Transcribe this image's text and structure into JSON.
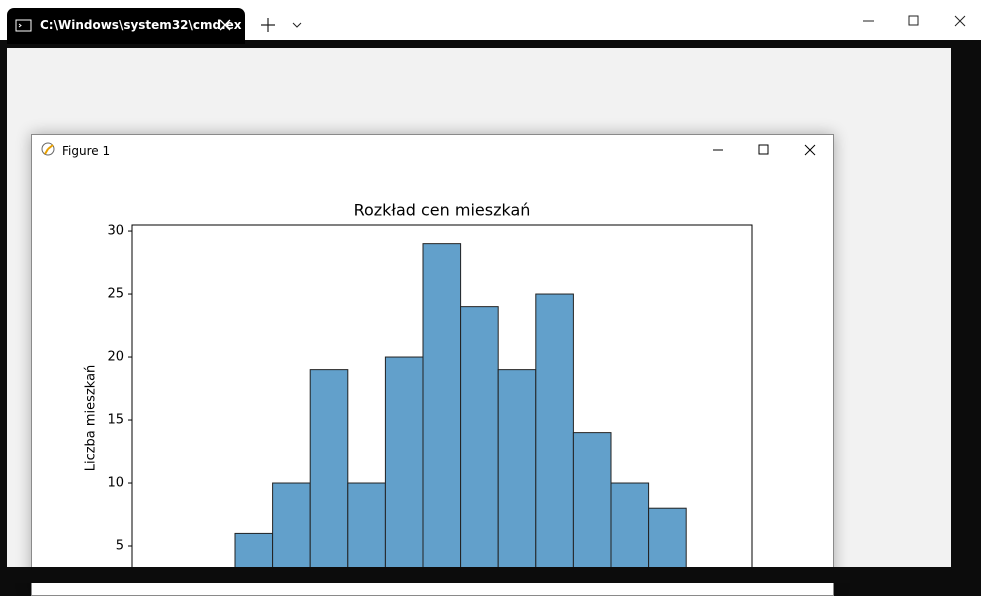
{
  "window": {
    "tab_title": "C:\\Windows\\system32\\cmd.ex"
  },
  "figure_window": {
    "title": "Figure 1"
  },
  "chart_data": {
    "type": "bar",
    "title": "Rozkład cen mieszkań",
    "y_label": "Liczba mieszkań",
    "values": [
      6,
      10,
      19,
      10,
      20,
      29,
      24,
      19,
      25,
      14,
      10,
      8
    ],
    "color": "#62a0cb",
    "ylim": [
      0,
      30.48
    ],
    "yticks": [
      5,
      10,
      15,
      20,
      25,
      30
    ]
  }
}
